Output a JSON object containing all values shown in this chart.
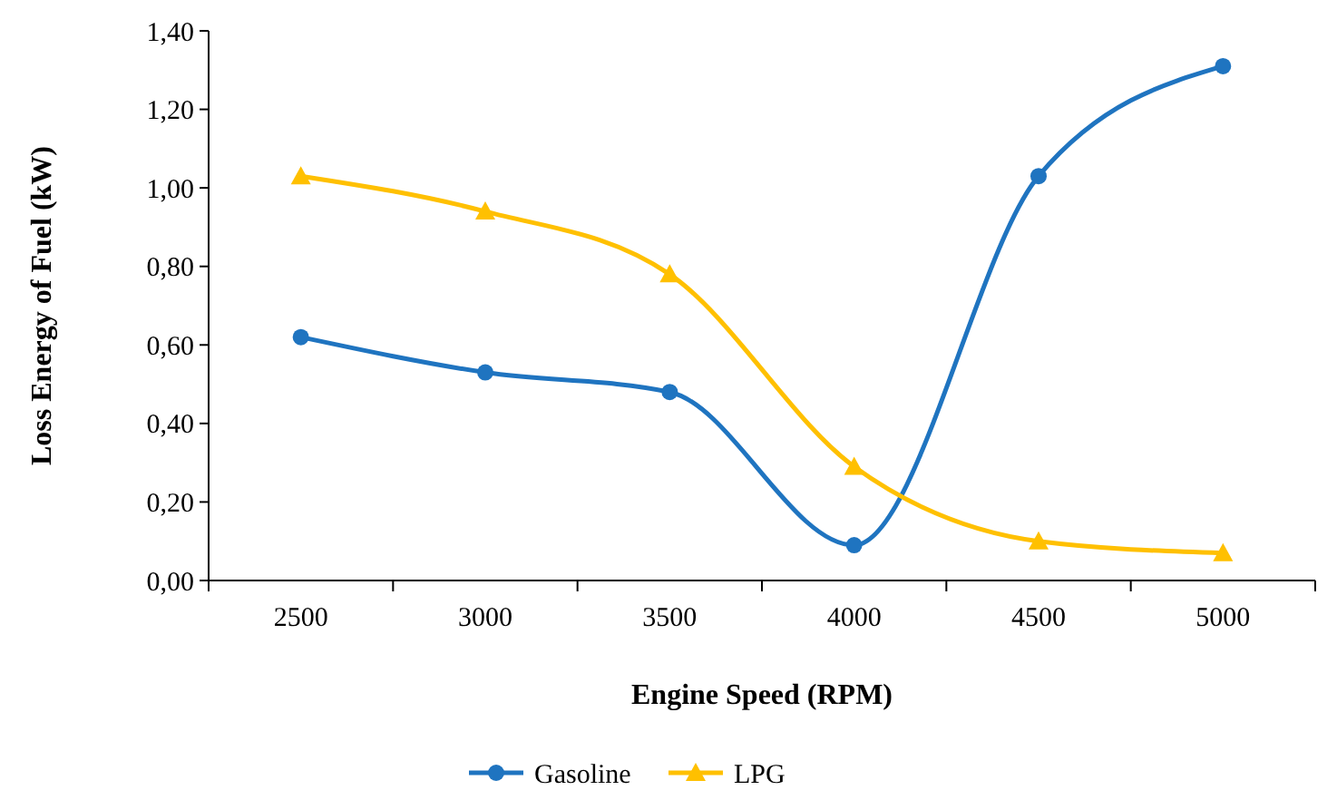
{
  "chart_data": {
    "type": "line",
    "xlabel": "Engine Speed (RPM)",
    "ylabel": "Loss Energy of Fuel (kW)",
    "categories": [
      "2500",
      "3000",
      "3500",
      "4000",
      "4500",
      "5000"
    ],
    "series": [
      {
        "name": "Gasoline",
        "color": "#1f74c0",
        "marker": "circle",
        "values": [
          0.62,
          0.53,
          0.48,
          0.09,
          1.03,
          1.31
        ]
      },
      {
        "name": "LPG",
        "color": "#ffc000",
        "marker": "triangle",
        "values": [
          1.03,
          0.94,
          0.78,
          0.29,
          0.1,
          0.07
        ]
      }
    ],
    "ylim": [
      0,
      1.4
    ],
    "yticks": [
      {
        "value": 0,
        "label": "0,00"
      },
      {
        "value": 0.2,
        "label": "0,20"
      },
      {
        "value": 0.4,
        "label": "0,40"
      },
      {
        "value": 0.6,
        "label": "0,60"
      },
      {
        "value": 0.8,
        "label": "0,80"
      },
      {
        "value": 1,
        "label": "1,00"
      },
      {
        "value": 1.2,
        "label": "1,20"
      },
      {
        "value": 1.4,
        "label": "1,40"
      }
    ],
    "grid": false,
    "legend": "bottom"
  }
}
